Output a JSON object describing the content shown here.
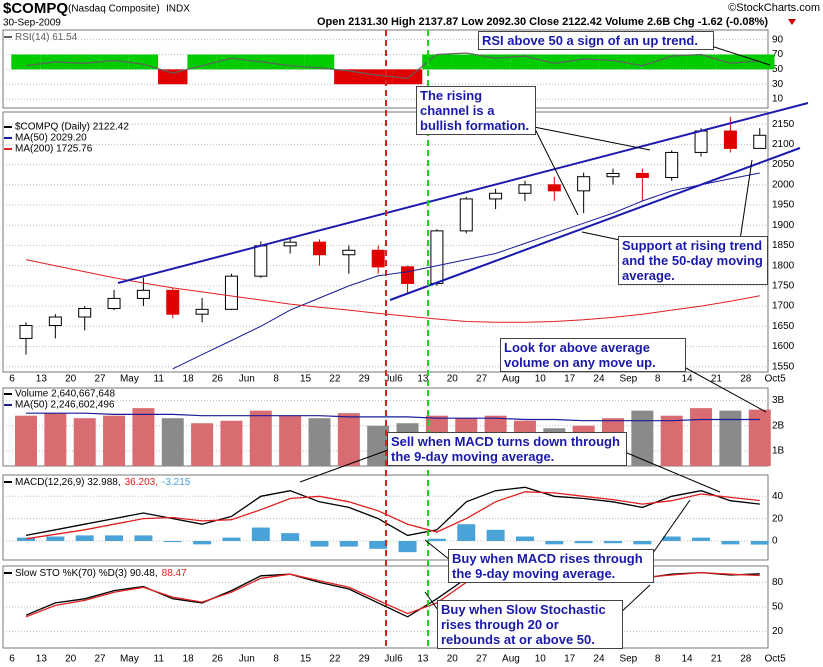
{
  "header": {
    "symbol": "$COMPQ",
    "name": "(Nasdaq Composite)",
    "exchange": "INDX",
    "date": "30-Sep-2009",
    "quote": "Open 2131.30 High 2137.87 Low 2092.30 Close 2122.42 Volume 2.6B Chg -1.62 (-0.08%)",
    "credit": "©StockCharts.com"
  },
  "chart_data": [
    {
      "type": "rsi",
      "series": [
        {
          "name": "RSI(14) 61.54",
          "color": "#606060",
          "values": [
            55,
            60,
            58,
            62,
            57,
            45,
            55,
            65,
            60,
            55,
            52,
            48,
            42,
            38,
            70,
            72,
            65,
            68,
            58,
            64,
            62,
            55,
            68,
            70,
            58,
            61.54,
            null
          ]
        }
      ],
      "above_color": "#00cc00",
      "below_color": "#e00000",
      "ylim": [
        -2,
        103
      ],
      "yticks": [
        90,
        70,
        50,
        30,
        10
      ],
      "grid": true,
      "annotations": [
        "RSI above 50 a sign of an up trend."
      ]
    },
    {
      "type": "candlestick",
      "categories": [
        "6",
        "13",
        "20",
        "27",
        "May",
        "11",
        "18",
        "26",
        "Jun",
        "8",
        "15",
        "22",
        "29",
        "Jul6",
        "13",
        "20",
        "27",
        "Aug",
        "10",
        "17",
        "24",
        "Sep",
        "8",
        "14",
        "21",
        "28",
        "Oct5"
      ],
      "up_color": "#000000",
      "down_color": "#e00000",
      "series": [
        {
          "name": "$COMPQ (Daily) 2122.42",
          "color": "#000000",
          "open": [
            1620,
            1652,
            1673,
            1694,
            1719,
            1739,
            1680,
            1692,
            1774,
            1849,
            1858,
            1827,
            1838,
            1797,
            1756,
            1886,
            1965,
            1979,
            2000,
            1985,
            2020,
            2028,
            2018,
            2080,
            2133,
            2090,
            null
          ],
          "high": [
            1660,
            1680,
            1700,
            1740,
            1770,
            1745,
            1720,
            1780,
            1860,
            1870,
            1865,
            1850,
            1850,
            1800,
            1890,
            1970,
            1990,
            2010,
            2020,
            2030,
            2040,
            2040,
            2085,
            2140,
            2168,
            2140,
            null
          ],
          "low": [
            1580,
            1620,
            1640,
            1690,
            1700,
            1670,
            1660,
            1690,
            1770,
            1830,
            1800,
            1780,
            1780,
            1730,
            1750,
            1880,
            1940,
            1960,
            1960,
            1930,
            2000,
            1960,
            2010,
            2070,
            2080,
            2090,
            null
          ],
          "close": [
            1652,
            1673,
            1694,
            1719,
            1739,
            1680,
            1692,
            1774,
            1849,
            1858,
            1827,
            1838,
            1797,
            1756,
            1886,
            1965,
            1979,
            2000,
            1985,
            2020,
            2028,
            2018,
            2080,
            2133,
            2090,
            2122.42,
            null
          ]
        },
        {
          "name": "MA(50) 2029.20",
          "color": "#1a1a9a",
          "values": [
            null,
            null,
            null,
            null,
            null,
            1545,
            1580,
            1615,
            1650,
            1690,
            1720,
            1750,
            1775,
            1785,
            1800,
            1815,
            1830,
            1855,
            1880,
            1905,
            1930,
            1960,
            1985,
            2000,
            2015,
            2029.2,
            null
          ]
        },
        {
          "name": "MA(200) 1725.76",
          "color": "#e02020",
          "values": [
            1815,
            1800,
            1785,
            1770,
            1757,
            1745,
            1735,
            1725,
            1715,
            1705,
            1697,
            1690,
            1682,
            1675,
            1668,
            1662,
            1660,
            1660,
            1662,
            1666,
            1672,
            1680,
            1690,
            1700,
            1712,
            1725.76,
            null
          ]
        }
      ],
      "ylim": [
        1537,
        2180
      ],
      "yticks": [
        1550,
        1600,
        1650,
        1700,
        1750,
        1800,
        1850,
        1900,
        1950,
        2000,
        2050,
        2100,
        2150
      ],
      "grid": true,
      "annotations": [
        "The rising channel is a bullish formation.",
        "Support at rising trend and the 50-day moving average.",
        "Look for above average volume on any move up."
      ]
    },
    {
      "type": "bar",
      "up_color": "#d86c70",
      "down_color": "#8a8a8a",
      "series": [
        {
          "name": "Volume 2,640,667,648",
          "color": "#000000",
          "values": [
            2400000000,
            2500000000,
            2300000000,
            2400000000,
            2700000000,
            2300000000,
            2100000000,
            2200000000,
            2600000000,
            2400000000,
            2300000000,
            2500000000,
            2000000000,
            2100000000,
            2400000000,
            2300000000,
            2400000000,
            2200000000,
            1900000000,
            2000000000,
            2300000000,
            2600000000,
            2400000000,
            2700000000,
            2600000000,
            2640667648,
            null
          ]
        },
        {
          "name": "MA(50) 2,246,602,496",
          "color": "#1a1a9a",
          "values": [
            2500000000,
            2500000000,
            2500000000,
            2450000000,
            2450000000,
            2450000000,
            2400000000,
            2400000000,
            2400000000,
            2400000000,
            2400000000,
            2350000000,
            2350000000,
            2350000000,
            2300000000,
            2300000000,
            2300000000,
            2250000000,
            2250000000,
            2200000000,
            2200000000,
            2200000000,
            2200000000,
            2250000000,
            2250000000,
            2246602496,
            null
          ]
        }
      ],
      "ylim": [
        400000000,
        3500000000
      ],
      "yticks": [
        {
          "value": 3000000000,
          "label": "3B"
        },
        {
          "value": 2000000000,
          "label": "2B"
        },
        {
          "value": 1000000000,
          "label": "1B"
        }
      ],
      "grid": true,
      "annotations": [
        "Sell when MACD turns down through the 9-day moving average."
      ]
    },
    {
      "type": "macd",
      "series": [
        {
          "name": "MACD(12,26,9) 32.988,",
          "color": "#000000",
          "values": [
            5,
            10,
            15,
            20,
            25,
            20,
            15,
            22,
            40,
            45,
            35,
            30,
            20,
            5,
            10,
            35,
            45,
            48,
            40,
            38,
            35,
            30,
            40,
            45,
            36,
            32.988,
            null
          ]
        },
        {
          "name": "36.203,",
          "color": "#e02020",
          "values": [
            2,
            6,
            10,
            15,
            20,
            21,
            18,
            19,
            28,
            38,
            40,
            35,
            27,
            15,
            8,
            20,
            35,
            44,
            43,
            40,
            37,
            33,
            36,
            42,
            39,
            36.203,
            null
          ]
        },
        {
          "name": "-3.215",
          "color": "#4aa3d8",
          "kind": "bar",
          "values": [
            3,
            4,
            5,
            5,
            5,
            -1,
            -3,
            3,
            12,
            7,
            -5,
            -5,
            -7,
            -10,
            2,
            15,
            10,
            4,
            -3,
            -2,
            -2,
            -3,
            4,
            3,
            -3,
            -3.215,
            null
          ]
        }
      ],
      "ylim": [
        -17,
        59
      ],
      "yticks": [
        40,
        20,
        0
      ],
      "grid": true,
      "annotations": [
        "Buy when MACD rises through the 9-day moving average."
      ]
    },
    {
      "type": "line",
      "series": [
        {
          "name": "Slow STO %K(70) %D(3) 90.48,",
          "color": "#000000",
          "values": [
            40,
            55,
            60,
            70,
            75,
            60,
            55,
            70,
            88,
            90,
            80,
            72,
            55,
            38,
            60,
            85,
            92,
            93,
            88,
            87,
            88,
            85,
            90,
            92,
            89,
            90.48,
            null
          ]
        },
        {
          "name": "88.47",
          "color": "#e02020",
          "values": [
            38,
            52,
            58,
            68,
            74,
            62,
            56,
            68,
            85,
            90,
            82,
            74,
            58,
            42,
            55,
            80,
            90,
            93,
            89,
            87,
            88,
            86,
            89,
            92,
            90,
            88.47,
            null
          ]
        }
      ],
      "ylim": [
        0,
        100
      ],
      "yticks": [
        80,
        50,
        20
      ],
      "grid": true,
      "annotations": [
        "Buy when Slow Stochastic rises through 20 or rebounds at or above 50."
      ]
    }
  ]
}
